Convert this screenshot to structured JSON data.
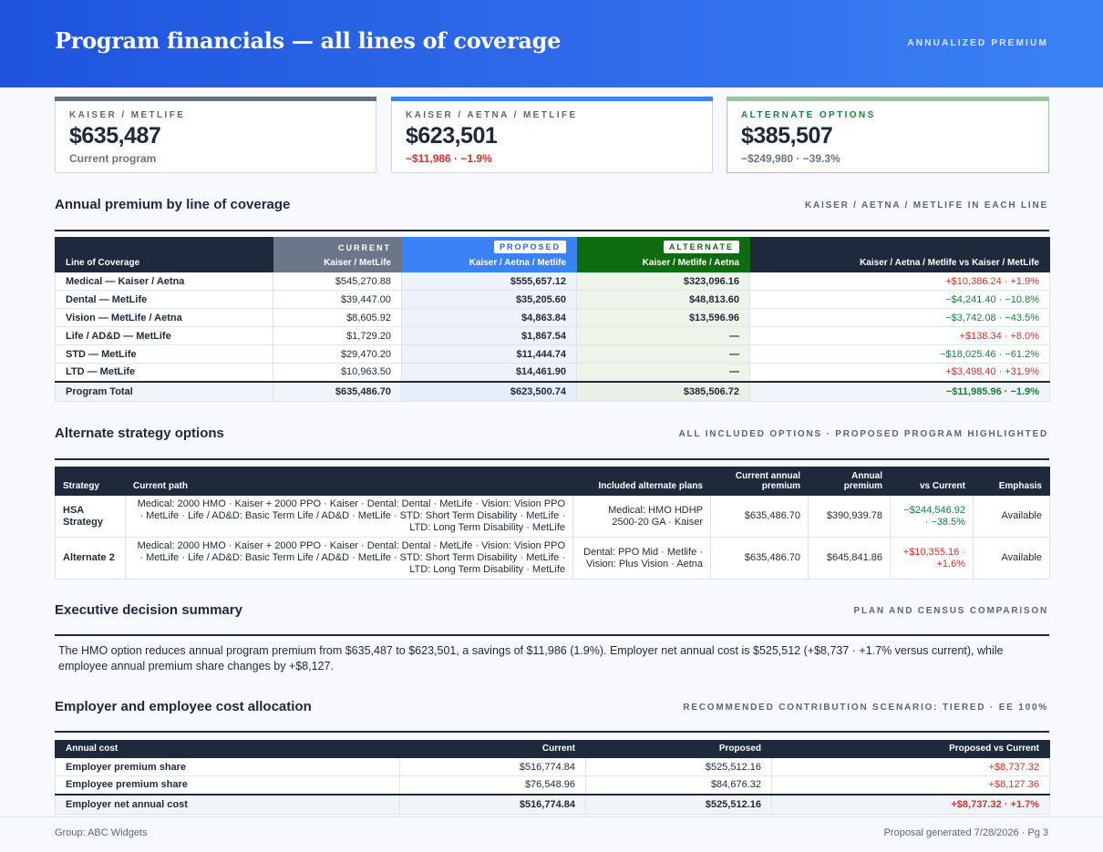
{
  "header": {
    "title": "Program financials — all lines of coverage",
    "right_label": "ANNUALIZED PREMIUM"
  },
  "kpis": [
    {
      "label": "KAISER / METLIFE",
      "value": "$635,487",
      "sub": "Current program",
      "bar_color": "#64707f"
    },
    {
      "label": "KAISER / AETNA / METLIFE",
      "value": "$623,501",
      "sub": "−$11,986 · −1.9%",
      "bar_color": "#3b82f6"
    },
    {
      "label": "ALTERNATE OPTIONS",
      "value": "$385,507",
      "sub": "−$249,980 · −39.3%",
      "bar_color": "#9cc49a"
    }
  ],
  "coverage": {
    "title": "Annual premium by line of coverage",
    "right_label": "KAISER / AETNA / METLIFE IN EACH LINE",
    "headers": {
      "line": "Line of Coverage",
      "current_chip": "CURRENT",
      "current": "Kaiser / MetLife",
      "proposed_chip": "PROPOSED",
      "proposed": "Kaiser / Aetna / Metlife",
      "alternate_chip": "ALTERNATE",
      "alternate": "Kaiser / Metlife / Aetna",
      "diff": "Kaiser / Aetna / Metlife vs Kaiser / MetLife"
    },
    "rows": [
      {
        "line": "Medical — Kaiser / Aetna",
        "current": "$545,270.88",
        "proposed": "$555,657.12",
        "alternate": "$323,096.16",
        "diff": "+$10,386.24 · +1.9%",
        "dir": "pos"
      },
      {
        "line": "Dental — MetLife",
        "current": "$39,447.00",
        "proposed": "$35,205.60",
        "alternate": "$48,813.60",
        "diff": "−$4,241.40 · −10.8%",
        "dir": "neg"
      },
      {
        "line": "Vision — MetLife / Aetna",
        "current": "$8,605.92",
        "proposed": "$4,863.84",
        "alternate": "$13,596.96",
        "diff": "−$3,742.08 · −43.5%",
        "dir": "neg"
      },
      {
        "line": "Life / AD&D — MetLife",
        "current": "$1,729.20",
        "proposed": "$1,867.54",
        "alternate": "—",
        "diff": "+$138.34 · +8.0%",
        "dir": "pos"
      },
      {
        "line": "STD — MetLife",
        "current": "$29,470.20",
        "proposed": "$11,444.74",
        "alternate": "—",
        "diff": "−$18,025.46 · −61.2%",
        "dir": "neg"
      },
      {
        "line": "LTD — MetLife",
        "current": "$10,963.50",
        "proposed": "$14,461.90",
        "alternate": "—",
        "diff": "+$3,498.40 · +31.9%",
        "dir": "pos"
      }
    ],
    "total": {
      "line": "Program Total",
      "current": "$635,486.70",
      "proposed": "$623,500.74",
      "alternate": "$385,506.72",
      "diff": "−$11,985.96 · −1.9%"
    }
  },
  "strategy": {
    "title": "Alternate strategy options",
    "right_label": "ALL INCLUDED OPTIONS · PROPOSED PROGRAM HIGHLIGHTED",
    "headers": {
      "strategy": "Strategy",
      "path": "Current path",
      "plans": "Included alternate plans",
      "cur_premium": "Current annual premium",
      "premium": "Annual premium",
      "vs": "vs Current",
      "emphasis": "Emphasis"
    },
    "rows": [
      {
        "strategy": "HSA Strategy",
        "path": "Medical: 2000 HMO · Kaiser + 2000 PPO · Kaiser · Dental: Dental · MetLife · Vision: Vision PPO · MetLife · Life / AD&D: Basic Term Life / AD&D · MetLife · STD: Short Term Disability · MetLife · LTD: Long Term Disability · MetLife",
        "plans": "Medical: HMO HDHP 2500-20 GA · Kaiser",
        "cur_premium": "$635,486.70",
        "premium": "$390,939.78",
        "vs": "−$244,546.92 · −38.5%",
        "dir": "neg",
        "emphasis": "Available"
      },
      {
        "strategy": "Alternate 2",
        "path": "Medical: 2000 HMO · Kaiser + 2000 PPO · Kaiser · Dental: Dental · MetLife · Vision: Vision PPO · MetLife · Life / AD&D: Basic Term Life / AD&D · MetLife · STD: Short Term Disability · MetLife · LTD: Long Term Disability · MetLife",
        "plans": "Dental: PPO Mid · Metlife · Vision: Plus Vision · Aetna",
        "cur_premium": "$635,486.70",
        "premium": "$645,841.86",
        "vs": "+$10,355.16 · +1.6%",
        "dir": "pos",
        "emphasis": "Available"
      }
    ]
  },
  "summary": {
    "title": "Executive decision summary",
    "right_label": "PLAN AND CENSUS COMPARISON",
    "text": "The HMO option reduces annual program premium from $635,487 to $623,501, a savings of $11,986 (1.9%). Employer net annual cost is $525,512 (+$8,737 · +1.7% versus current), while employee annual premium share changes by +$8,127."
  },
  "allocation": {
    "title": "Employer and employee cost allocation",
    "right_label": "RECOMMENDED CONTRIBUTION SCENARIO: TIERED · EE 100%",
    "headers": {
      "cost": "Annual cost",
      "current": "Current",
      "proposed": "Proposed",
      "diff": "Proposed vs Current"
    },
    "rows": [
      {
        "cost": "Employer premium share",
        "current": "$516,774.84",
        "proposed": "$525,512.16",
        "diff": "+$8,737.32"
      },
      {
        "cost": "Employee premium share",
        "current": "$76,548.96",
        "proposed": "$84,676.32",
        "diff": "+$8,127.36"
      }
    ],
    "total": {
      "cost": "Employer net annual cost",
      "current": "$516,774.84",
      "proposed": "$525,512.16",
      "diff": "+$8,737.32 · +1.7%"
    }
  },
  "footer": {
    "left": "Group: ABC Widgets",
    "right": "Proposal generated 7/28/2026 · Pg 3"
  }
}
